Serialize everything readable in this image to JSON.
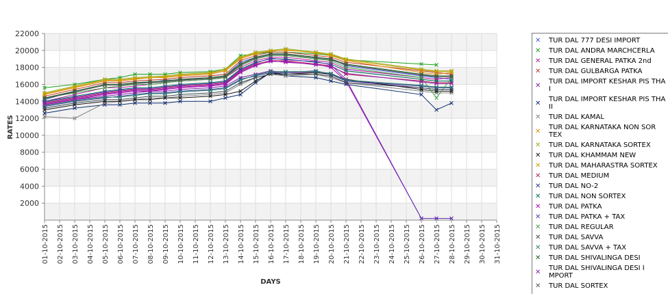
{
  "chart_data": {
    "type": "line",
    "title": "",
    "xlabel": "DAYS",
    "ylabel": "RATES",
    "ylim": [
      0,
      22000
    ],
    "yticks": [
      2000,
      4000,
      6000,
      8000,
      10000,
      12000,
      14000,
      16000,
      18000,
      20000,
      22000
    ],
    "grid": true,
    "legend_position": "right",
    "categories": [
      "01-10-2015",
      "02-10-2015",
      "03-10-2015",
      "04-10-2015",
      "05-10-2015",
      "06-10-2015",
      "07-10-2015",
      "08-10-2015",
      "09-10-2015",
      "10-10-2015",
      "11-10-2015",
      "12-10-2015",
      "13-10-2015",
      "14-10-2015",
      "15-10-2015",
      "16-10-2015",
      "17-10-2015",
      "18-10-2015",
      "19-10-2015",
      "20-10-2015",
      "21-10-2015",
      "22-10-2015",
      "23-10-2015",
      "24-10-2015",
      "25-10-2015",
      "26-10-2015",
      "27-10-2015",
      "28-10-2015",
      "29-10-2015",
      "30-10-2015",
      "31-10-2015"
    ],
    "series": [
      {
        "name": "TUR DAL  777 DESI IMPORT",
        "color": "#3b5bdb",
        "values": [
          14200,
          null,
          15200,
          null,
          16000,
          16000,
          16200,
          16200,
          16500,
          16500,
          null,
          16800,
          17000,
          18600,
          19200,
          19600,
          19600,
          null,
          19200,
          19000,
          18200,
          null,
          null,
          null,
          null,
          17000,
          16800,
          16600,
          null,
          null,
          null
        ]
      },
      {
        "name": "TUR DAL ANDRA MARCHCERLA",
        "color": "#1a9e1a",
        "values": [
          15600,
          null,
          16000,
          null,
          16600,
          16800,
          17200,
          17200,
          17200,
          17400,
          null,
          17500,
          17800,
          19400,
          19600,
          19800,
          19800,
          null,
          19600,
          19400,
          18900,
          null,
          null,
          null,
          null,
          18400,
          18300,
          null,
          null,
          null,
          null
        ]
      },
      {
        "name": "TUR DAL GENERAL PATKA 2nd",
        "color": "#b5179e",
        "values": [
          14000,
          null,
          14800,
          null,
          15600,
          15600,
          15800,
          16000,
          16200,
          16400,
          null,
          16600,
          16800,
          18000,
          18800,
          19200,
          19200,
          null,
          18800,
          18600,
          17800,
          null,
          null,
          null,
          null,
          16800,
          16600,
          16800,
          null,
          null,
          null
        ]
      },
      {
        "name": "TUR DAL GULBARGA PATKA",
        "color": "#c0392b",
        "values": [
          14600,
          null,
          15400,
          null,
          16200,
          16200,
          16400,
          16500,
          16600,
          16800,
          null,
          17000,
          17200,
          18800,
          19400,
          19800,
          19800,
          null,
          19400,
          19200,
          18600,
          null,
          null,
          null,
          null,
          17600,
          17400,
          17200,
          null,
          null,
          null
        ]
      },
      {
        "name": "TUR DAL IMPORT KESHAR PIS THA I",
        "color": "#7b1fa2",
        "values": [
          13600,
          null,
          14200,
          null,
          14600,
          14800,
          15000,
          15200,
          15200,
          15400,
          null,
          15600,
          15800,
          16800,
          17200,
          17600,
          17400,
          null,
          17400,
          17200,
          16400,
          null,
          null,
          null,
          null,
          15600,
          15400,
          15400,
          null,
          null,
          null
        ]
      },
      {
        "name": "TUR DAL IMPORT KESHAR PIS THA II",
        "color": "#0d2a6e",
        "values": [
          12600,
          null,
          13200,
          null,
          13600,
          13600,
          13800,
          13800,
          13800,
          14000,
          null,
          14000,
          14400,
          14800,
          16200,
          17400,
          17000,
          null,
          16800,
          16400,
          16000,
          null,
          null,
          null,
          null,
          14800,
          13000,
          13800,
          null,
          null,
          null
        ]
      },
      {
        "name": "TUR DAL KAMAL",
        "color": "#808080",
        "values": [
          12200,
          null,
          12000,
          null,
          13800,
          14000,
          14200,
          14400,
          14400,
          14600,
          null,
          14800,
          15000,
          16000,
          16800,
          17200,
          17000,
          null,
          17200,
          16800,
          16200,
          null,
          null,
          null,
          null,
          15200,
          15000,
          15000,
          null,
          null,
          null
        ]
      },
      {
        "name": "TUR DAL KARNATAKA NON SOR TEX",
        "color": "#e08e0b",
        "values": [
          14800,
          null,
          15600,
          null,
          16400,
          16400,
          16600,
          16800,
          16800,
          17000,
          null,
          17200,
          17600,
          19000,
          19600,
          20000,
          20000,
          null,
          19800,
          19400,
          18800,
          null,
          null,
          null,
          null,
          17400,
          17200,
          17400,
          null,
          null,
          null
        ]
      },
      {
        "name": "TUR DAL KARNATAKA SORTEX",
        "color": "#9aab1e",
        "values": [
          15000,
          null,
          15800,
          null,
          16600,
          16600,
          16800,
          16900,
          17000,
          17200,
          null,
          17400,
          17800,
          19200,
          19800,
          20000,
          20200,
          null,
          19800,
          19600,
          19000,
          null,
          null,
          null,
          null,
          17800,
          17600,
          17600,
          null,
          null,
          null
        ]
      },
      {
        "name": "TUR DAL KHAMMAM NEW",
        "color": "#111111",
        "values": [
          13000,
          null,
          13600,
          null,
          14000,
          14000,
          14200,
          14200,
          14400,
          14400,
          null,
          14600,
          14800,
          15200,
          16400,
          17400,
          17200,
          null,
          17400,
          17200,
          16600,
          null,
          null,
          null,
          null,
          15400,
          15200,
          15200,
          null,
          null,
          null
        ]
      },
      {
        "name": "TUR DAL MAHARASTRA SORTEX",
        "color": "#caa000",
        "values": [
          14900,
          null,
          15700,
          null,
          16500,
          16500,
          16700,
          16800,
          16900,
          17100,
          null,
          17300,
          17700,
          19100,
          19700,
          19900,
          20100,
          null,
          19700,
          19500,
          18900,
          null,
          null,
          null,
          null,
          17700,
          17500,
          17500,
          null,
          null,
          null
        ]
      },
      {
        "name": "TUR DAL MEDIUM",
        "color": "#c2185b",
        "values": [
          13800,
          null,
          14400,
          null,
          15000,
          15200,
          15400,
          15400,
          15600,
          15800,
          null,
          16000,
          16200,
          17600,
          18400,
          18800,
          18800,
          null,
          18400,
          18200,
          17200,
          null,
          null,
          null,
          null,
          16400,
          16200,
          16200,
          null,
          null,
          null
        ]
      },
      {
        "name": "TUR DAL NO-2",
        "color": "#283593",
        "values": [
          13400,
          null,
          14000,
          null,
          14400,
          14600,
          14800,
          15000,
          15000,
          15200,
          null,
          15400,
          15600,
          16600,
          17000,
          17400,
          17400,
          null,
          17600,
          17200,
          16400,
          null,
          null,
          null,
          null,
          15800,
          15600,
          15600,
          null,
          null,
          null
        ]
      },
      {
        "name": "TUR DAL NON SORTEX",
        "color": "#00695c",
        "values": [
          14000,
          null,
          14600,
          null,
          15200,
          15400,
          15600,
          15600,
          15800,
          16000,
          null,
          16200,
          16400,
          17800,
          18600,
          19000,
          19000,
          null,
          18600,
          18400,
          17600,
          null,
          null,
          null,
          null,
          16600,
          16400,
          16400,
          null,
          null,
          null
        ]
      },
      {
        "name": "TUR DAL PATKA",
        "color": "#b000b0",
        "values": [
          13600,
          null,
          14200,
          null,
          14800,
          15000,
          15200,
          15200,
          15400,
          15600,
          null,
          15800,
          16000,
          17400,
          18200,
          18800,
          18600,
          null,
          18400,
          18000,
          16400,
          null,
          null,
          null,
          null,
          200,
          200,
          200,
          null,
          null,
          null
        ]
      },
      {
        "name": "TUR DAL PATKA + TAX",
        "color": "#5e35b1",
        "values": [
          13900,
          null,
          14500,
          null,
          15100,
          15300,
          15500,
          15500,
          15700,
          15900,
          null,
          16100,
          16300,
          17700,
          18500,
          19100,
          18900,
          null,
          18700,
          18300,
          16600,
          null,
          null,
          null,
          null,
          200,
          200,
          200,
          null,
          null,
          null
        ]
      },
      {
        "name": "TUR DAL REGULAR",
        "color": "#43a047",
        "values": [
          14400,
          null,
          15000,
          null,
          15600,
          15800,
          16000,
          16000,
          16200,
          16400,
          null,
          16600,
          16800,
          18200,
          19000,
          19400,
          19400,
          null,
          19000,
          18800,
          18000,
          null,
          null,
          null,
          null,
          16800,
          14400,
          16800,
          null,
          null,
          null
        ]
      },
      {
        "name": "TUR DAL SAVVA",
        "color": "#37474f",
        "values": [
          13200,
          null,
          13800,
          null,
          14200,
          14200,
          14400,
          14600,
          14600,
          14800,
          null,
          15000,
          15200,
          16200,
          16800,
          17200,
          17200,
          null,
          17200,
          17000,
          16200,
          null,
          null,
          null,
          null,
          15600,
          15400,
          15400,
          null,
          null,
          null
        ]
      },
      {
        "name": "TUR DAL SAVVA + TAX",
        "color": "#2e7d6b",
        "values": [
          13500,
          null,
          14100,
          null,
          14500,
          14500,
          14700,
          14900,
          14900,
          15100,
          null,
          15300,
          15500,
          16500,
          17100,
          17500,
          17500,
          null,
          17500,
          17300,
          16500,
          null,
          null,
          null,
          null,
          15900,
          15700,
          15700,
          null,
          null,
          null
        ]
      },
      {
        "name": "TUR DAL SHIVALINGA DESI",
        "color": "#1b5e20",
        "values": [
          14400,
          null,
          15200,
          null,
          16000,
          16000,
          16200,
          16300,
          16400,
          16600,
          null,
          16800,
          17000,
          18400,
          19200,
          19600,
          19600,
          null,
          19200,
          19000,
          18400,
          null,
          null,
          null,
          null,
          17200,
          17000,
          17000,
          null,
          null,
          null
        ]
      },
      {
        "name": "TUR DAL SHIVALINGA DESI I MPORT",
        "color": "#8e24aa",
        "values": [
          13700,
          null,
          14300,
          null,
          14900,
          15100,
          15300,
          15300,
          15500,
          15700,
          null,
          15900,
          16100,
          17500,
          18300,
          18700,
          18700,
          null,
          18300,
          18100,
          17300,
          null,
          null,
          null,
          null,
          16300,
          16100,
          16100,
          null,
          null,
          null
        ]
      },
      {
        "name": "TUR DAL SORTEX",
        "color": "#555555",
        "values": [
          14300,
          null,
          15100,
          null,
          15900,
          15900,
          16100,
          16200,
          16300,
          16500,
          null,
          16700,
          16900,
          18300,
          19100,
          19500,
          19500,
          null,
          19100,
          18900,
          18300,
          null,
          null,
          null,
          null,
          17100,
          16900,
          16900,
          null,
          null,
          null
        ]
      }
    ]
  }
}
